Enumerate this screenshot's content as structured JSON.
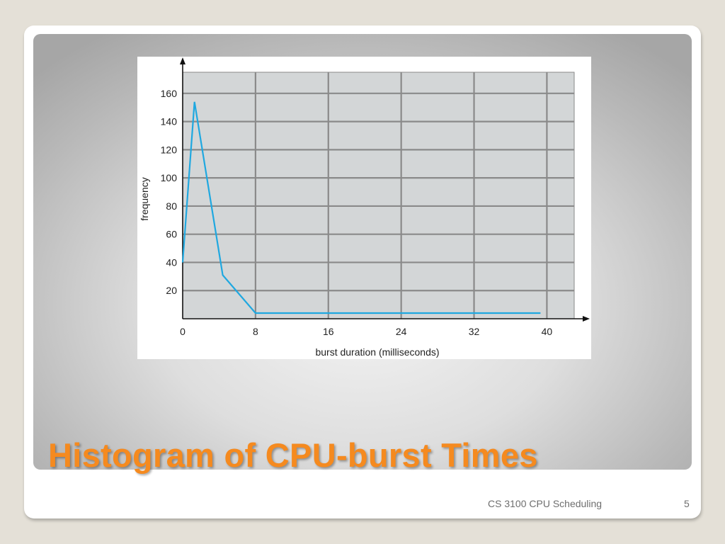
{
  "slide": {
    "title": "Histogram of CPU-burst Times",
    "footer": "CS 3100 CPU Scheduling",
    "page_number": "5"
  },
  "colors": {
    "title": "#f58a1f",
    "line": "#1fa8e0",
    "plot_background": "#d3d6d7",
    "grid": "#8a8a8a"
  },
  "chart_data": {
    "type": "line",
    "title": "",
    "xlabel": "burst duration (milliseconds)",
    "ylabel": "frequency",
    "xlim": [
      0,
      43
    ],
    "ylim": [
      0,
      175
    ],
    "x_ticks": [
      0,
      8,
      16,
      24,
      32,
      40
    ],
    "y_ticks": [
      20,
      40,
      60,
      80,
      100,
      120,
      140,
      160
    ],
    "grid": true,
    "series": [
      {
        "x": [
          0,
          1.3,
          4.4,
          8,
          39.3
        ],
        "y": [
          40,
          154,
          31,
          4,
          4
        ]
      }
    ]
  }
}
